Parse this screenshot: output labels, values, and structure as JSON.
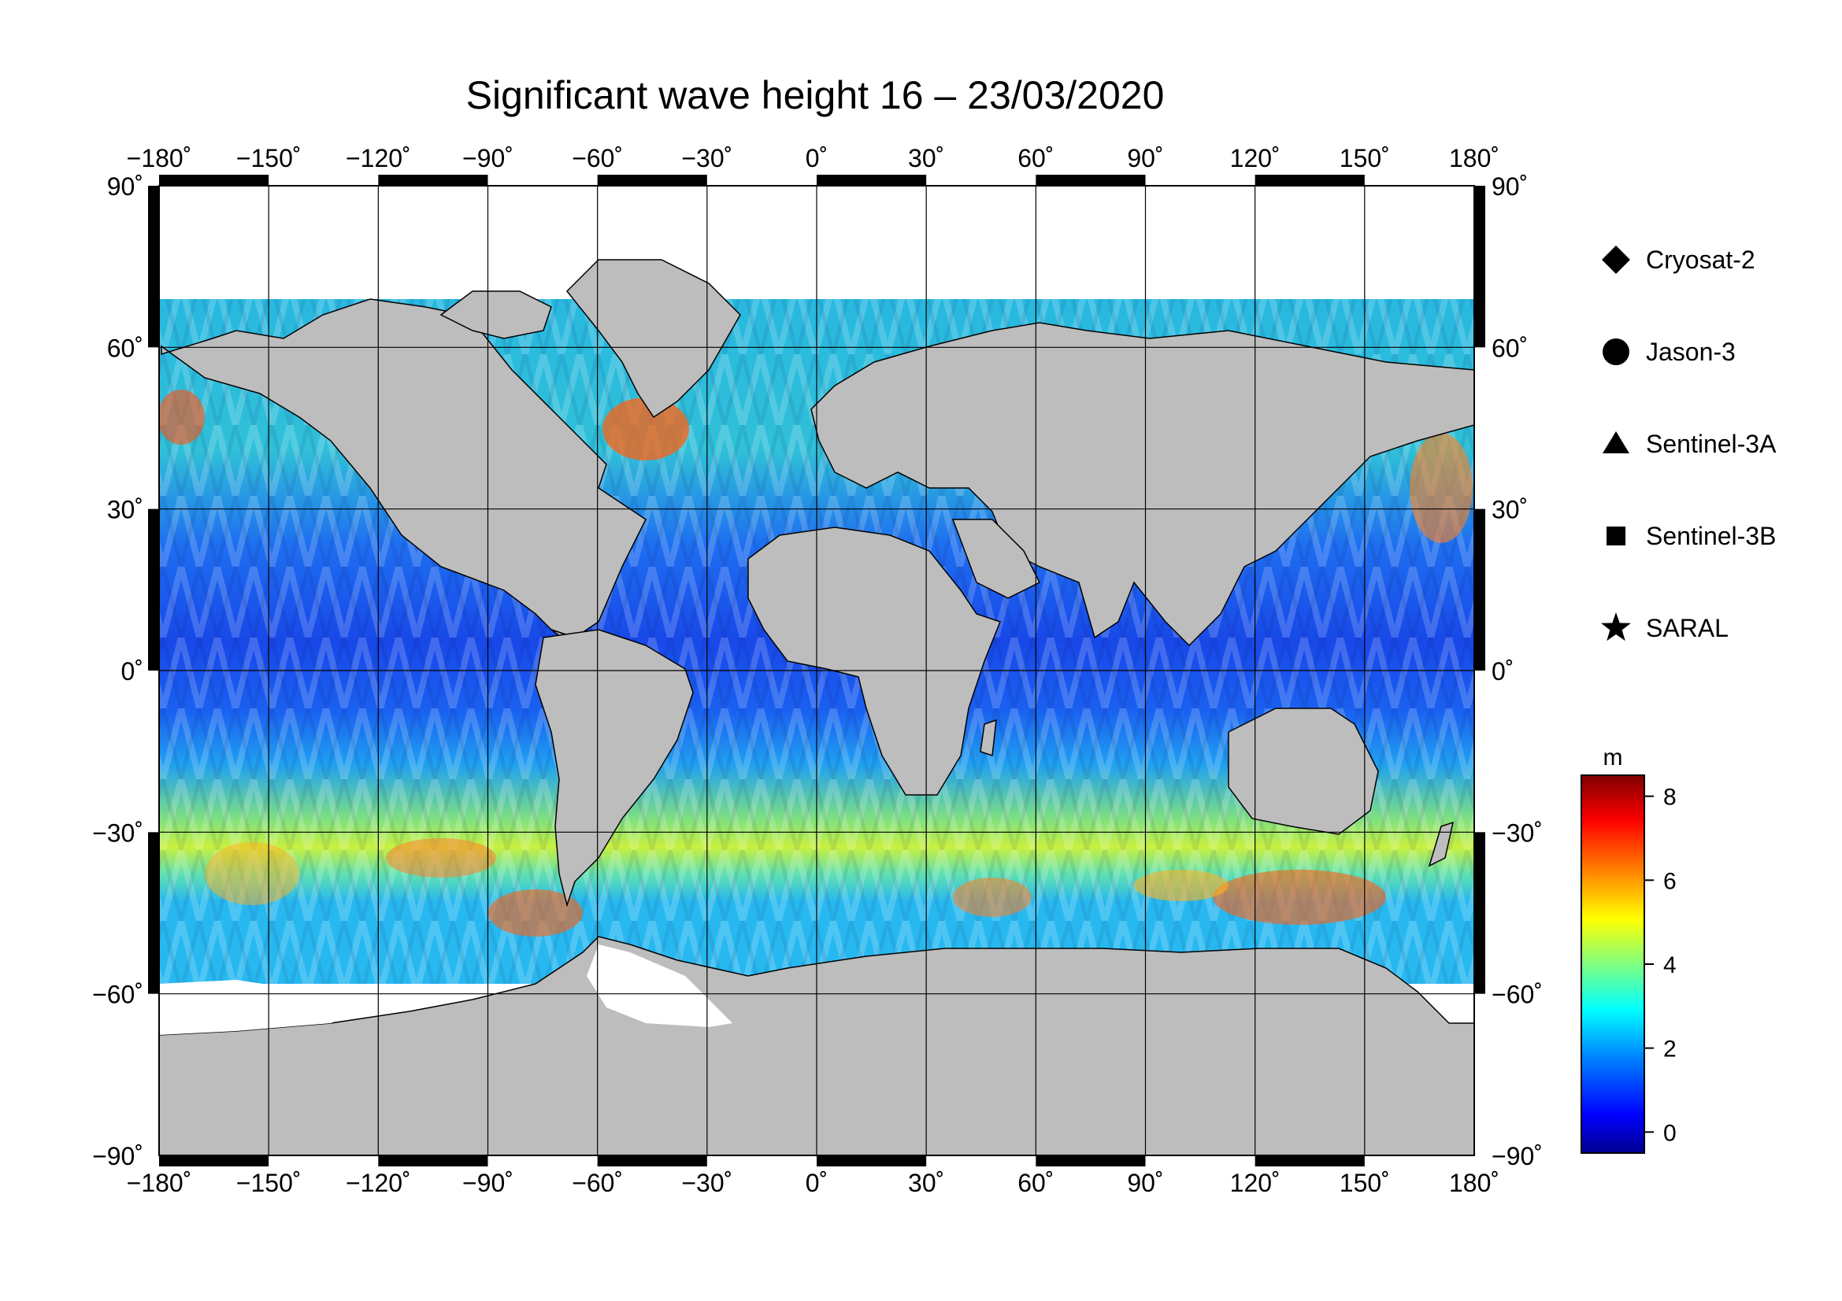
{
  "title": "Significant wave height 16 – 23/03/2020",
  "map": {
    "projection": "equirectangular",
    "lon_range": [
      -180,
      180
    ],
    "lat_range": [
      -90,
      90
    ],
    "grid": true,
    "lon_ticks": [
      "−180˚",
      "−150˚",
      "−120˚",
      "−90˚",
      "−60˚",
      "−30˚",
      "0˚",
      "30˚",
      "60˚",
      "90˚",
      "120˚",
      "150˚",
      "180˚"
    ],
    "lat_ticks_left": [
      "90˚",
      "60˚",
      "30˚",
      "0˚",
      "−30˚",
      "−60˚",
      "−90˚"
    ],
    "lat_ticks_right": [
      "90˚",
      "60˚",
      "30˚",
      "0˚",
      "−30˚",
      "−60˚",
      "−90˚"
    ],
    "land_color": "#bdbdbd",
    "ice_color": "#ffffff"
  },
  "legend": {
    "items": [
      {
        "label": "Cryosat-2",
        "symbol": "diamond"
      },
      {
        "label": "Jason-3",
        "symbol": "circle"
      },
      {
        "label": "Sentinel-3A",
        "symbol": "triangle"
      },
      {
        "label": "Sentinel-3B",
        "symbol": "square"
      },
      {
        "label": "SARAL",
        "symbol": "star"
      }
    ]
  },
  "colorbar": {
    "unit": "m",
    "min": -0.5,
    "max": 8.5,
    "ticks": [
      "0",
      "2",
      "4",
      "6",
      "8"
    ],
    "colormap": [
      "#00008f",
      "#0000ff",
      "#0080ff",
      "#00ffff",
      "#80ff80",
      "#ffff00",
      "#ff8000",
      "#ff0000",
      "#800000"
    ]
  }
}
